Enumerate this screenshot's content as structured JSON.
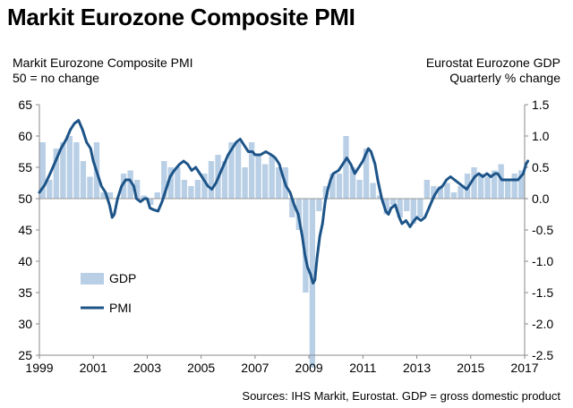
{
  "header": {
    "title": "Markit Eurozone Composite PMI",
    "left_label_line1": "Markit Eurozone Composite PMI",
    "left_label_line2": "50 = no change",
    "right_label_line1": "Eurostat Eurozone GDP",
    "right_label_line2": "Quarterly % change",
    "source": "Sources: IHS Markit, Eurostat. GDP = gross domestic product"
  },
  "colors": {
    "pmi_line": "#1d5488",
    "gdp_bar": "#b8cfe6",
    "axis": "#888888"
  },
  "chart_data": {
    "type": "bar+line",
    "x_ticks": [
      "1999",
      "2001",
      "2003",
      "2005",
      "2007",
      "2009",
      "2011",
      "2013",
      "2015",
      "2017"
    ],
    "x_range": [
      1999.0,
      2017.0
    ],
    "left_axis": {
      "ticks": [
        "25",
        "30",
        "35",
        "40",
        "45",
        "50",
        "55",
        "60",
        "65"
      ],
      "ylim": [
        25,
        65
      ],
      "baseline": 50
    },
    "right_axis": {
      "ticks": [
        "-2.5",
        "-2.0",
        "-1.5",
        "-1.0",
        "-0.5",
        "0.0",
        "0.5",
        "1.0",
        "1.5"
      ],
      "ylim": [
        -2.5,
        1.5
      ]
    },
    "legend": [
      "GDP",
      "PMI"
    ],
    "series": [
      {
        "name": "GDP",
        "type": "bar",
        "axis": "right",
        "quarters": [
          "1999Q1",
          "1999Q2",
          "1999Q3",
          "1999Q4",
          "2000Q1",
          "2000Q2",
          "2000Q3",
          "2000Q4",
          "2001Q1",
          "2001Q2",
          "2001Q3",
          "2001Q4",
          "2002Q1",
          "2002Q2",
          "2002Q3",
          "2002Q4",
          "2003Q1",
          "2003Q2",
          "2003Q3",
          "2003Q4",
          "2004Q1",
          "2004Q2",
          "2004Q3",
          "2004Q4",
          "2005Q1",
          "2005Q2",
          "2005Q3",
          "2005Q4",
          "2006Q1",
          "2006Q2",
          "2006Q3",
          "2006Q4",
          "2007Q1",
          "2007Q2",
          "2007Q3",
          "2007Q4",
          "2008Q1",
          "2008Q2",
          "2008Q3",
          "2008Q4",
          "2009Q1",
          "2009Q2",
          "2009Q3",
          "2009Q4",
          "2010Q1",
          "2010Q2",
          "2010Q3",
          "2010Q4",
          "2011Q1",
          "2011Q2",
          "2011Q3",
          "2011Q4",
          "2012Q1",
          "2012Q2",
          "2012Q3",
          "2012Q4",
          "2013Q1",
          "2013Q2",
          "2013Q3",
          "2013Q4",
          "2014Q1",
          "2014Q2",
          "2014Q3",
          "2014Q4",
          "2015Q1",
          "2015Q2",
          "2015Q3",
          "2015Q4",
          "2016Q1",
          "2016Q2",
          "2016Q3",
          "2016Q4"
        ],
        "values": [
          0.9,
          0.3,
          0.8,
          0.9,
          1.0,
          0.9,
          0.6,
          0.35,
          0.9,
          0.1,
          0.1,
          0.0,
          0.4,
          0.45,
          0.3,
          0.05,
          -0.1,
          0.1,
          0.6,
          0.5,
          0.5,
          0.3,
          0.2,
          0.3,
          0.4,
          0.6,
          0.7,
          0.6,
          0.9,
          0.9,
          0.5,
          0.9,
          0.7,
          0.55,
          0.7,
          0.5,
          0.5,
          -0.3,
          -0.5,
          -1.5,
          -2.7,
          -0.2,
          0.2,
          0.4,
          0.4,
          1.0,
          0.5,
          0.3,
          0.8,
          0.25,
          0.05,
          -0.25,
          -0.1,
          -0.3,
          -0.2,
          -0.4,
          -0.3,
          0.3,
          0.2,
          0.2,
          0.25,
          0.1,
          0.2,
          0.4,
          0.5,
          0.4,
          0.35,
          0.45,
          0.55,
          0.3,
          0.4,
          0.45
        ]
      },
      {
        "name": "PMI",
        "type": "line",
        "axis": "left",
        "points": [
          [
            1999.0,
            51.0
          ],
          [
            1999.2,
            52.2
          ],
          [
            1999.4,
            54.0
          ],
          [
            1999.6,
            56.0
          ],
          [
            1999.8,
            58.0
          ],
          [
            2000.0,
            59.5
          ],
          [
            2000.15,
            61.0
          ],
          [
            2000.3,
            62.0
          ],
          [
            2000.45,
            62.5
          ],
          [
            2000.6,
            61.0
          ],
          [
            2000.75,
            59.0
          ],
          [
            2000.9,
            58.0
          ],
          [
            2001.0,
            56.0
          ],
          [
            2001.15,
            54.0
          ],
          [
            2001.3,
            52.0
          ],
          [
            2001.45,
            51.0
          ],
          [
            2001.6,
            49.0
          ],
          [
            2001.7,
            47.0
          ],
          [
            2001.78,
            47.5
          ],
          [
            2001.9,
            50.0
          ],
          [
            2002.05,
            52.0
          ],
          [
            2002.2,
            53.0
          ],
          [
            2002.35,
            53.0
          ],
          [
            2002.5,
            52.0
          ],
          [
            2002.6,
            50.0
          ],
          [
            2002.75,
            49.5
          ],
          [
            2002.9,
            50.0
          ],
          [
            2003.0,
            50.0
          ],
          [
            2003.1,
            48.5
          ],
          [
            2003.25,
            48.2
          ],
          [
            2003.4,
            48.0
          ],
          [
            2003.55,
            49.5
          ],
          [
            2003.7,
            51.5
          ],
          [
            2003.85,
            53.5
          ],
          [
            2004.0,
            54.5
          ],
          [
            2004.2,
            55.5
          ],
          [
            2004.35,
            56.0
          ],
          [
            2004.5,
            55.5
          ],
          [
            2004.65,
            54.5
          ],
          [
            2004.8,
            55.0
          ],
          [
            2004.95,
            54.0
          ],
          [
            2005.1,
            53.0
          ],
          [
            2005.25,
            52.0
          ],
          [
            2005.4,
            51.5
          ],
          [
            2005.55,
            52.5
          ],
          [
            2005.7,
            54.0
          ],
          [
            2005.85,
            55.5
          ],
          [
            2006.0,
            57.0
          ],
          [
            2006.15,
            58.0
          ],
          [
            2006.3,
            59.0
          ],
          [
            2006.45,
            59.5
          ],
          [
            2006.6,
            58.5
          ],
          [
            2006.75,
            57.5
          ],
          [
            2006.9,
            57.5
          ],
          [
            2007.0,
            57.0
          ],
          [
            2007.2,
            57.0
          ],
          [
            2007.4,
            57.5
          ],
          [
            2007.6,
            57.0
          ],
          [
            2007.75,
            56.5
          ],
          [
            2007.9,
            55.5
          ],
          [
            2008.0,
            54.0
          ],
          [
            2008.15,
            52.0
          ],
          [
            2008.3,
            51.0
          ],
          [
            2008.45,
            49.0
          ],
          [
            2008.6,
            47.5
          ],
          [
            2008.75,
            44.0
          ],
          [
            2008.85,
            41.0
          ],
          [
            2008.95,
            39.0
          ],
          [
            2009.05,
            38.0
          ],
          [
            2009.15,
            36.5
          ],
          [
            2009.22,
            37.0
          ],
          [
            2009.3,
            40.5
          ],
          [
            2009.4,
            44.0
          ],
          [
            2009.5,
            46.0
          ],
          [
            2009.6,
            49.5
          ],
          [
            2009.7,
            51.5
          ],
          [
            2009.8,
            53.0
          ],
          [
            2009.9,
            54.0
          ],
          [
            2010.1,
            54.5
          ],
          [
            2010.25,
            55.5
          ],
          [
            2010.4,
            56.5
          ],
          [
            2010.55,
            55.5
          ],
          [
            2010.7,
            54.0
          ],
          [
            2010.85,
            55.0
          ],
          [
            2011.0,
            56.0
          ],
          [
            2011.1,
            57.0
          ],
          [
            2011.2,
            58.0
          ],
          [
            2011.3,
            57.5
          ],
          [
            2011.45,
            55.5
          ],
          [
            2011.55,
            53.0
          ],
          [
            2011.7,
            50.0
          ],
          [
            2011.85,
            48.0
          ],
          [
            2011.95,
            47.5
          ],
          [
            2012.05,
            48.5
          ],
          [
            2012.2,
            49.0
          ],
          [
            2012.35,
            47.0
          ],
          [
            2012.45,
            46.0
          ],
          [
            2012.6,
            46.5
          ],
          [
            2012.75,
            45.5
          ],
          [
            2012.9,
            46.5
          ],
          [
            2013.0,
            47.0
          ],
          [
            2013.15,
            46.5
          ],
          [
            2013.3,
            47.0
          ],
          [
            2013.5,
            49.0
          ],
          [
            2013.65,
            50.5
          ],
          [
            2013.8,
            51.5
          ],
          [
            2013.95,
            52.0
          ],
          [
            2014.1,
            53.0
          ],
          [
            2014.25,
            53.5
          ],
          [
            2014.4,
            53.0
          ],
          [
            2014.55,
            52.5
          ],
          [
            2014.7,
            52.0
          ],
          [
            2014.85,
            51.5
          ],
          [
            2015.0,
            52.5
          ],
          [
            2015.15,
            53.5
          ],
          [
            2015.3,
            54.0
          ],
          [
            2015.45,
            53.5
          ],
          [
            2015.6,
            54.0
          ],
          [
            2015.75,
            53.5
          ],
          [
            2015.9,
            54.0
          ],
          [
            2016.0,
            54.0
          ],
          [
            2016.15,
            53.0
          ],
          [
            2016.3,
            53.0
          ],
          [
            2016.45,
            53.0
          ],
          [
            2016.6,
            53.0
          ],
          [
            2016.75,
            53.0
          ],
          [
            2016.85,
            53.5
          ],
          [
            2016.95,
            54.0
          ],
          [
            2017.05,
            55.5
          ],
          [
            2017.12,
            56.0
          ]
        ]
      }
    ]
  }
}
